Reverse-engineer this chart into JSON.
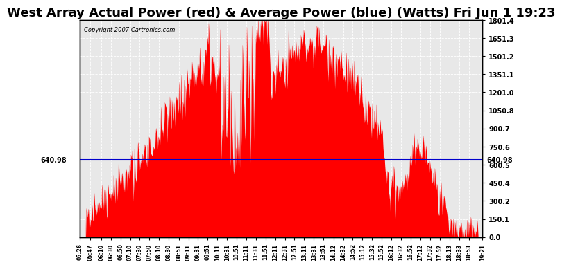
{
  "title": "West Array Actual Power (red) & Average Power (blue) (Watts) Fri Jun 1 19:23",
  "copyright": "Copyright 2007 Cartronics.com",
  "yticks_right": [
    0.0,
    150.1,
    300.2,
    450.4,
    600.5,
    750.6,
    900.7,
    1050.8,
    1201.0,
    1351.1,
    1501.2,
    1651.3,
    1801.4
  ],
  "ytick_labels_right": [
    "0.0",
    "150.1",
    "300.2",
    "450.4",
    "600.5",
    "750.6",
    "900.7",
    "1050.8",
    "1201.0",
    "1351.1",
    "1501.2",
    "1651.3",
    "1801.4"
  ],
  "ymax": 1801.4,
  "average_line_y": 640.98,
  "average_label": "640.98",
  "background_color": "#ffffff",
  "plot_bg_color": "#e8e8e8",
  "bar_color": "#ff0000",
  "line_color": "#0000cc",
  "grid_color": "#ffffff",
  "title_fontsize": 13,
  "x_labels": [
    "05:26",
    "05:47",
    "06:10",
    "06:30",
    "06:50",
    "07:10",
    "07:30",
    "07:50",
    "08:10",
    "08:30",
    "08:51",
    "09:11",
    "09:31",
    "09:51",
    "10:11",
    "10:31",
    "10:51",
    "11:11",
    "11:31",
    "11:51",
    "12:11",
    "12:31",
    "12:51",
    "13:11",
    "13:31",
    "13:51",
    "14:12",
    "14:32",
    "14:52",
    "15:12",
    "15:32",
    "15:52",
    "16:12",
    "16:32",
    "16:52",
    "17:12",
    "17:32",
    "17:52",
    "18:13",
    "18:33",
    "18:53",
    "19:21"
  ],
  "n_points": 560
}
